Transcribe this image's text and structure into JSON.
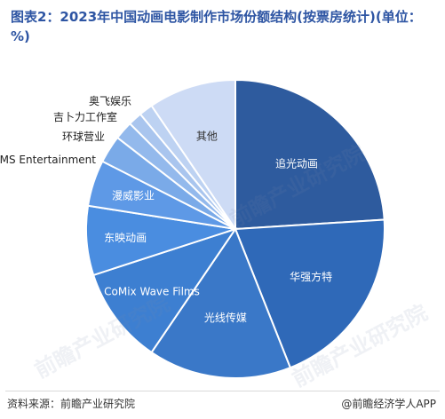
{
  "title": "图表2：2023年中国动画电影制作市场份额结构(按票房统计)(单位：%)",
  "source": "资料来源：前瞻产业研究院",
  "credit": "@前瞻经济学人APP",
  "watermark": "前瞻产业研究院",
  "chart_data": {
    "type": "pie",
    "title": "图表2：2023年中国动画电影制作市场份额结构(按票房统计)(单位：%)",
    "start": "12 o'clock, clockwise",
    "slices": [
      {
        "label": "追光动画",
        "value": 24.0,
        "color": "#2e5b9e"
      },
      {
        "label": "华强方特",
        "value": 20.0,
        "color": "#2f69b8"
      },
      {
        "label": "光线传媒",
        "value": 15.5,
        "color": "#3a78c8"
      },
      {
        "label": "CoMix Wave Films",
        "value": 10.5,
        "color": "#3d7fd1"
      },
      {
        "label": "东映动画",
        "value": 7.5,
        "color": "#4a8de0"
      },
      {
        "label": "漫威影业",
        "value": 5.0,
        "color": "#5e99e6"
      },
      {
        "label": "TMS Entertainment",
        "value": 3.0,
        "color": "#7aaae8"
      },
      {
        "label": "环球营业",
        "value": 2.0,
        "color": "#93b9ec"
      },
      {
        "label": "吉卜力工作室",
        "value": 1.5,
        "color": "#a9c5ee"
      },
      {
        "label": "奥飞娱乐",
        "value": 1.5,
        "color": "#bdd2f2"
      },
      {
        "label": "其他",
        "value": 9.5,
        "color": "#cddbf5"
      }
    ]
  }
}
